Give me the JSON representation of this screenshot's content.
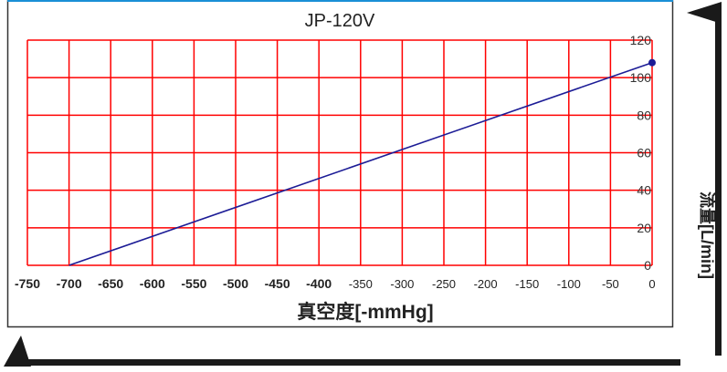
{
  "chart_data": {
    "type": "line",
    "title": "JP-120V",
    "xlabel": "真空度[-mmHg]",
    "ylabel": "流量[L/min]",
    "xlim": [
      -750,
      0
    ],
    "ylim": [
      0,
      120
    ],
    "x_ticks": [
      "-750",
      "-700",
      "-650",
      "-600",
      "-550",
      "-500",
      "-450",
      "-400",
      "-350",
      "-300",
      "-250",
      "-200",
      "-150",
      "-100",
      "-50",
      "0"
    ],
    "y_ticks": [
      "0",
      "20",
      "40",
      "60",
      "80",
      "100",
      "120"
    ],
    "grid": true,
    "series": [
      {
        "x": [
          -700,
          0
        ],
        "y": [
          0,
          108
        ],
        "marker_at_end": true
      }
    ],
    "colors": {
      "grid": "#ff0000",
      "line": "#1c1c96",
      "frame": "#333333",
      "arrows": "#1a1a1a",
      "frame_top": "#1a8fd6"
    }
  }
}
